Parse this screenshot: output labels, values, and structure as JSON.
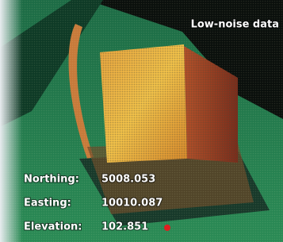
{
  "title": "Low-noise data",
  "readouts": [
    {
      "label": "Northing:",
      "value": "5008.053"
    },
    {
      "label": "Easting:",
      "value": "10010.087"
    },
    {
      "label": "Elevation:",
      "value": "102.851"
    }
  ]
}
